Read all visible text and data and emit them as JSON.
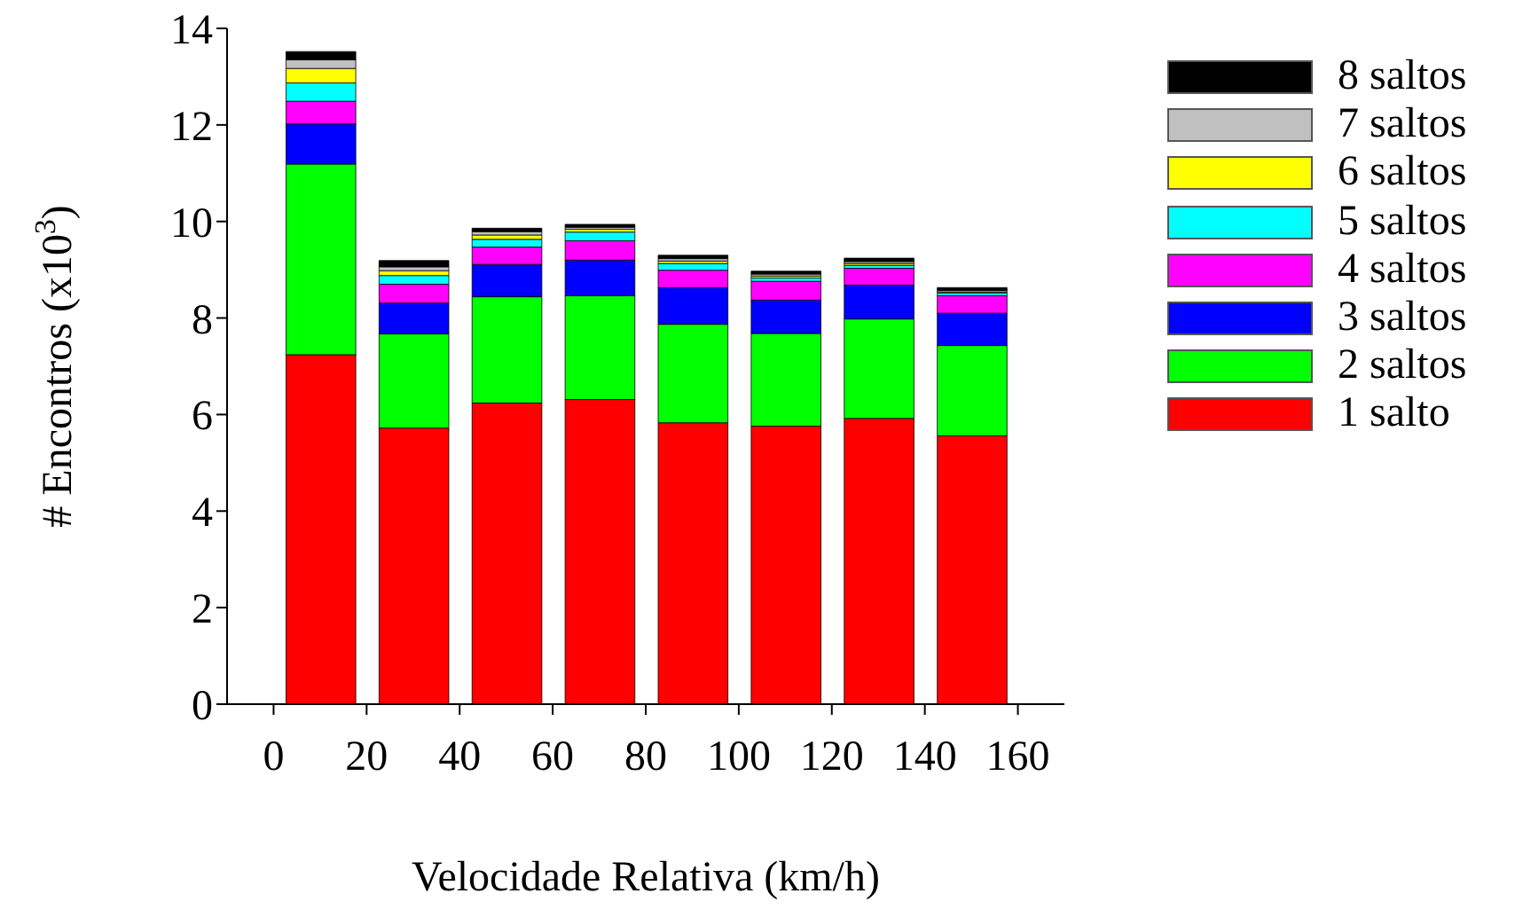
{
  "chart_data": {
    "type": "bar",
    "stacked": true,
    "xlabel": "Velocidade Relativa (km/h)",
    "ylabel": "# Encontros (x10$^{3}$)",
    "x": [
      10,
      30,
      50,
      70,
      90,
      110,
      130,
      150
    ],
    "xlim": [
      -10,
      170
    ],
    "xticks": [
      0,
      20,
      40,
      60,
      80,
      100,
      120,
      140,
      160
    ],
    "ylim": [
      0,
      14
    ],
    "yticks": [
      0,
      2,
      4,
      6,
      8,
      10,
      12,
      14
    ],
    "grid": false,
    "legend": "right",
    "series": [
      {
        "name": "1 salto",
        "color": "#ff0000",
        "values": [
          7.24,
          5.72,
          6.24,
          6.31,
          5.83,
          5.76,
          5.92,
          5.56
        ]
      },
      {
        "name": "2 saltos",
        "color": "#00ff00",
        "values": [
          3.95,
          1.95,
          2.2,
          2.15,
          2.04,
          1.92,
          2.06,
          1.87
        ]
      },
      {
        "name": "3 saltos",
        "color": "#0000ff",
        "values": [
          0.83,
          0.64,
          0.67,
          0.74,
          0.76,
          0.69,
          0.7,
          0.67
        ]
      },
      {
        "name": "4 saltos",
        "color": "#ff00ff",
        "values": [
          0.47,
          0.39,
          0.36,
          0.4,
          0.36,
          0.39,
          0.35,
          0.36
        ]
      },
      {
        "name": "5 saltos",
        "color": "#00ffff",
        "values": [
          0.38,
          0.18,
          0.16,
          0.18,
          0.14,
          0.07,
          0.06,
          0.06
        ]
      },
      {
        "name": "6 saltos",
        "color": "#ffff00",
        "values": [
          0.3,
          0.1,
          0.09,
          0.06,
          0.05,
          0.04,
          0.04,
          0.02
        ]
      },
      {
        "name": "7 saltos",
        "color": "#c0c0c0",
        "values": [
          0.18,
          0.08,
          0.07,
          0.04,
          0.05,
          0.04,
          0.04,
          0.03
        ]
      },
      {
        "name": "8 saltos",
        "color": "#000000",
        "values": [
          0.17,
          0.13,
          0.07,
          0.06,
          0.07,
          0.06,
          0.07,
          0.06
        ]
      }
    ]
  }
}
